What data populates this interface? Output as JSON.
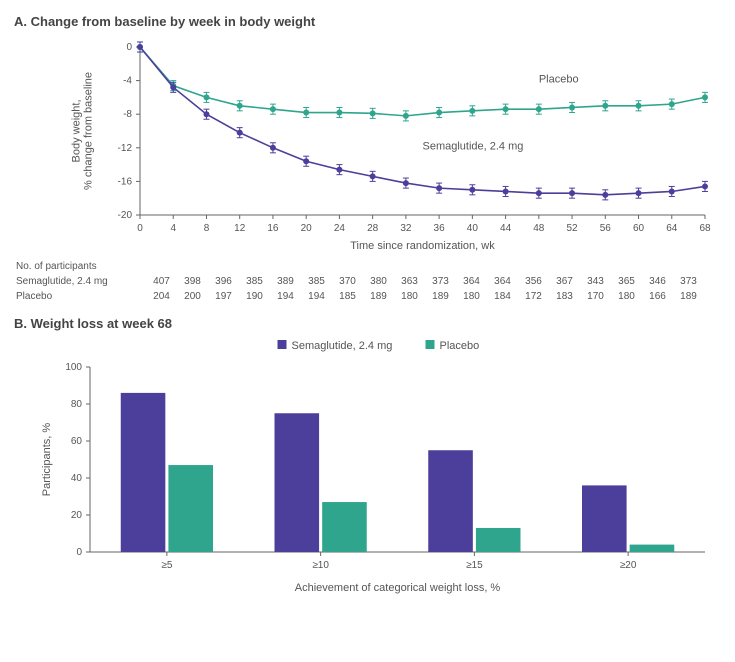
{
  "panelA": {
    "letter": "A.",
    "title": "Change from baseline by week in body weight",
    "type": "line",
    "x_label": "Time since randomization, wk",
    "y_label_line1": "Body weight,",
    "y_label_line2": "% change from baseline",
    "x_ticks": [
      0,
      4,
      8,
      12,
      16,
      20,
      24,
      28,
      32,
      36,
      40,
      44,
      48,
      52,
      56,
      60,
      64,
      68
    ],
    "y_ticks": [
      0,
      -4,
      -8,
      -12,
      -16,
      -20
    ],
    "xlim": [
      0,
      68
    ],
    "ylim": [
      -20,
      0
    ],
    "axis_color": "#666666",
    "tick_fontsize": 10,
    "label_fontsize": 11,
    "background_color": "#ffffff",
    "error_bar_half": 0.6,
    "marker_radius": 3,
    "line_width": 1.6,
    "series": [
      {
        "name": "Placebo",
        "label": "Placebo",
        "color": "#2fa58e",
        "annotation_xy": [
          48,
          -4.2
        ],
        "x": [
          0,
          4,
          8,
          12,
          16,
          20,
          24,
          28,
          32,
          36,
          40,
          44,
          48,
          52,
          56,
          60,
          64,
          68
        ],
        "y": [
          0,
          -4.6,
          -6.0,
          -7.0,
          -7.4,
          -7.8,
          -7.8,
          -7.9,
          -8.2,
          -7.8,
          -7.6,
          -7.4,
          -7.4,
          -7.2,
          -7.0,
          -7.0,
          -6.8,
          -6.0
        ]
      },
      {
        "name": "Semaglutide, 2.4 mg",
        "label": "Semaglutide, 2.4 mg",
        "color": "#4b3f9b",
        "annotation_xy": [
          34,
          -12.2
        ],
        "x": [
          0,
          4,
          8,
          12,
          16,
          20,
          24,
          28,
          32,
          36,
          40,
          44,
          48,
          52,
          56,
          60,
          64,
          68
        ],
        "y": [
          0,
          -4.8,
          -8.0,
          -10.2,
          -12.0,
          -13.6,
          -14.6,
          -15.4,
          -16.2,
          -16.8,
          -17.0,
          -17.2,
          -17.4,
          -17.4,
          -17.6,
          -17.4,
          -17.2,
          -16.6
        ]
      }
    ],
    "participants_header": "No. of participants",
    "participants_rows": [
      {
        "label": "Semaglutide, 2.4 mg",
        "values": [
          407,
          398,
          396,
          385,
          389,
          385,
          370,
          380,
          363,
          373,
          364,
          364,
          356,
          367,
          343,
          365,
          346,
          373
        ]
      },
      {
        "label": "Placebo",
        "values": [
          204,
          200,
          197,
          190,
          194,
          194,
          185,
          189,
          180,
          189,
          180,
          184,
          172,
          183,
          170,
          180,
          166,
          189
        ]
      }
    ]
  },
  "panelB": {
    "letter": "B.",
    "title": "Weight loss at week 68",
    "type": "bar",
    "x_label": "Achievement of categorical weight loss, %",
    "y_label": "Participants, %",
    "categories": [
      "≥5",
      "≥10",
      "≥15",
      "≥20"
    ],
    "y_ticks": [
      0,
      20,
      40,
      60,
      80,
      100
    ],
    "ylim": [
      0,
      100
    ],
    "bar_group_width": 0.6,
    "bar_gap": 0.02,
    "axis_color": "#666666",
    "tick_fontsize": 10,
    "label_fontsize": 11,
    "background_color": "#ffffff",
    "legend_marker_size": 9,
    "series": [
      {
        "name": "Semaglutide, 2.4 mg",
        "label": "Semaglutide, 2.4 mg",
        "color": "#4b3f9b",
        "values": [
          86,
          75,
          55,
          36
        ]
      },
      {
        "name": "Placebo",
        "label": "Placebo",
        "color": "#2fa58e",
        "values": [
          47,
          27,
          13,
          4
        ]
      }
    ]
  }
}
